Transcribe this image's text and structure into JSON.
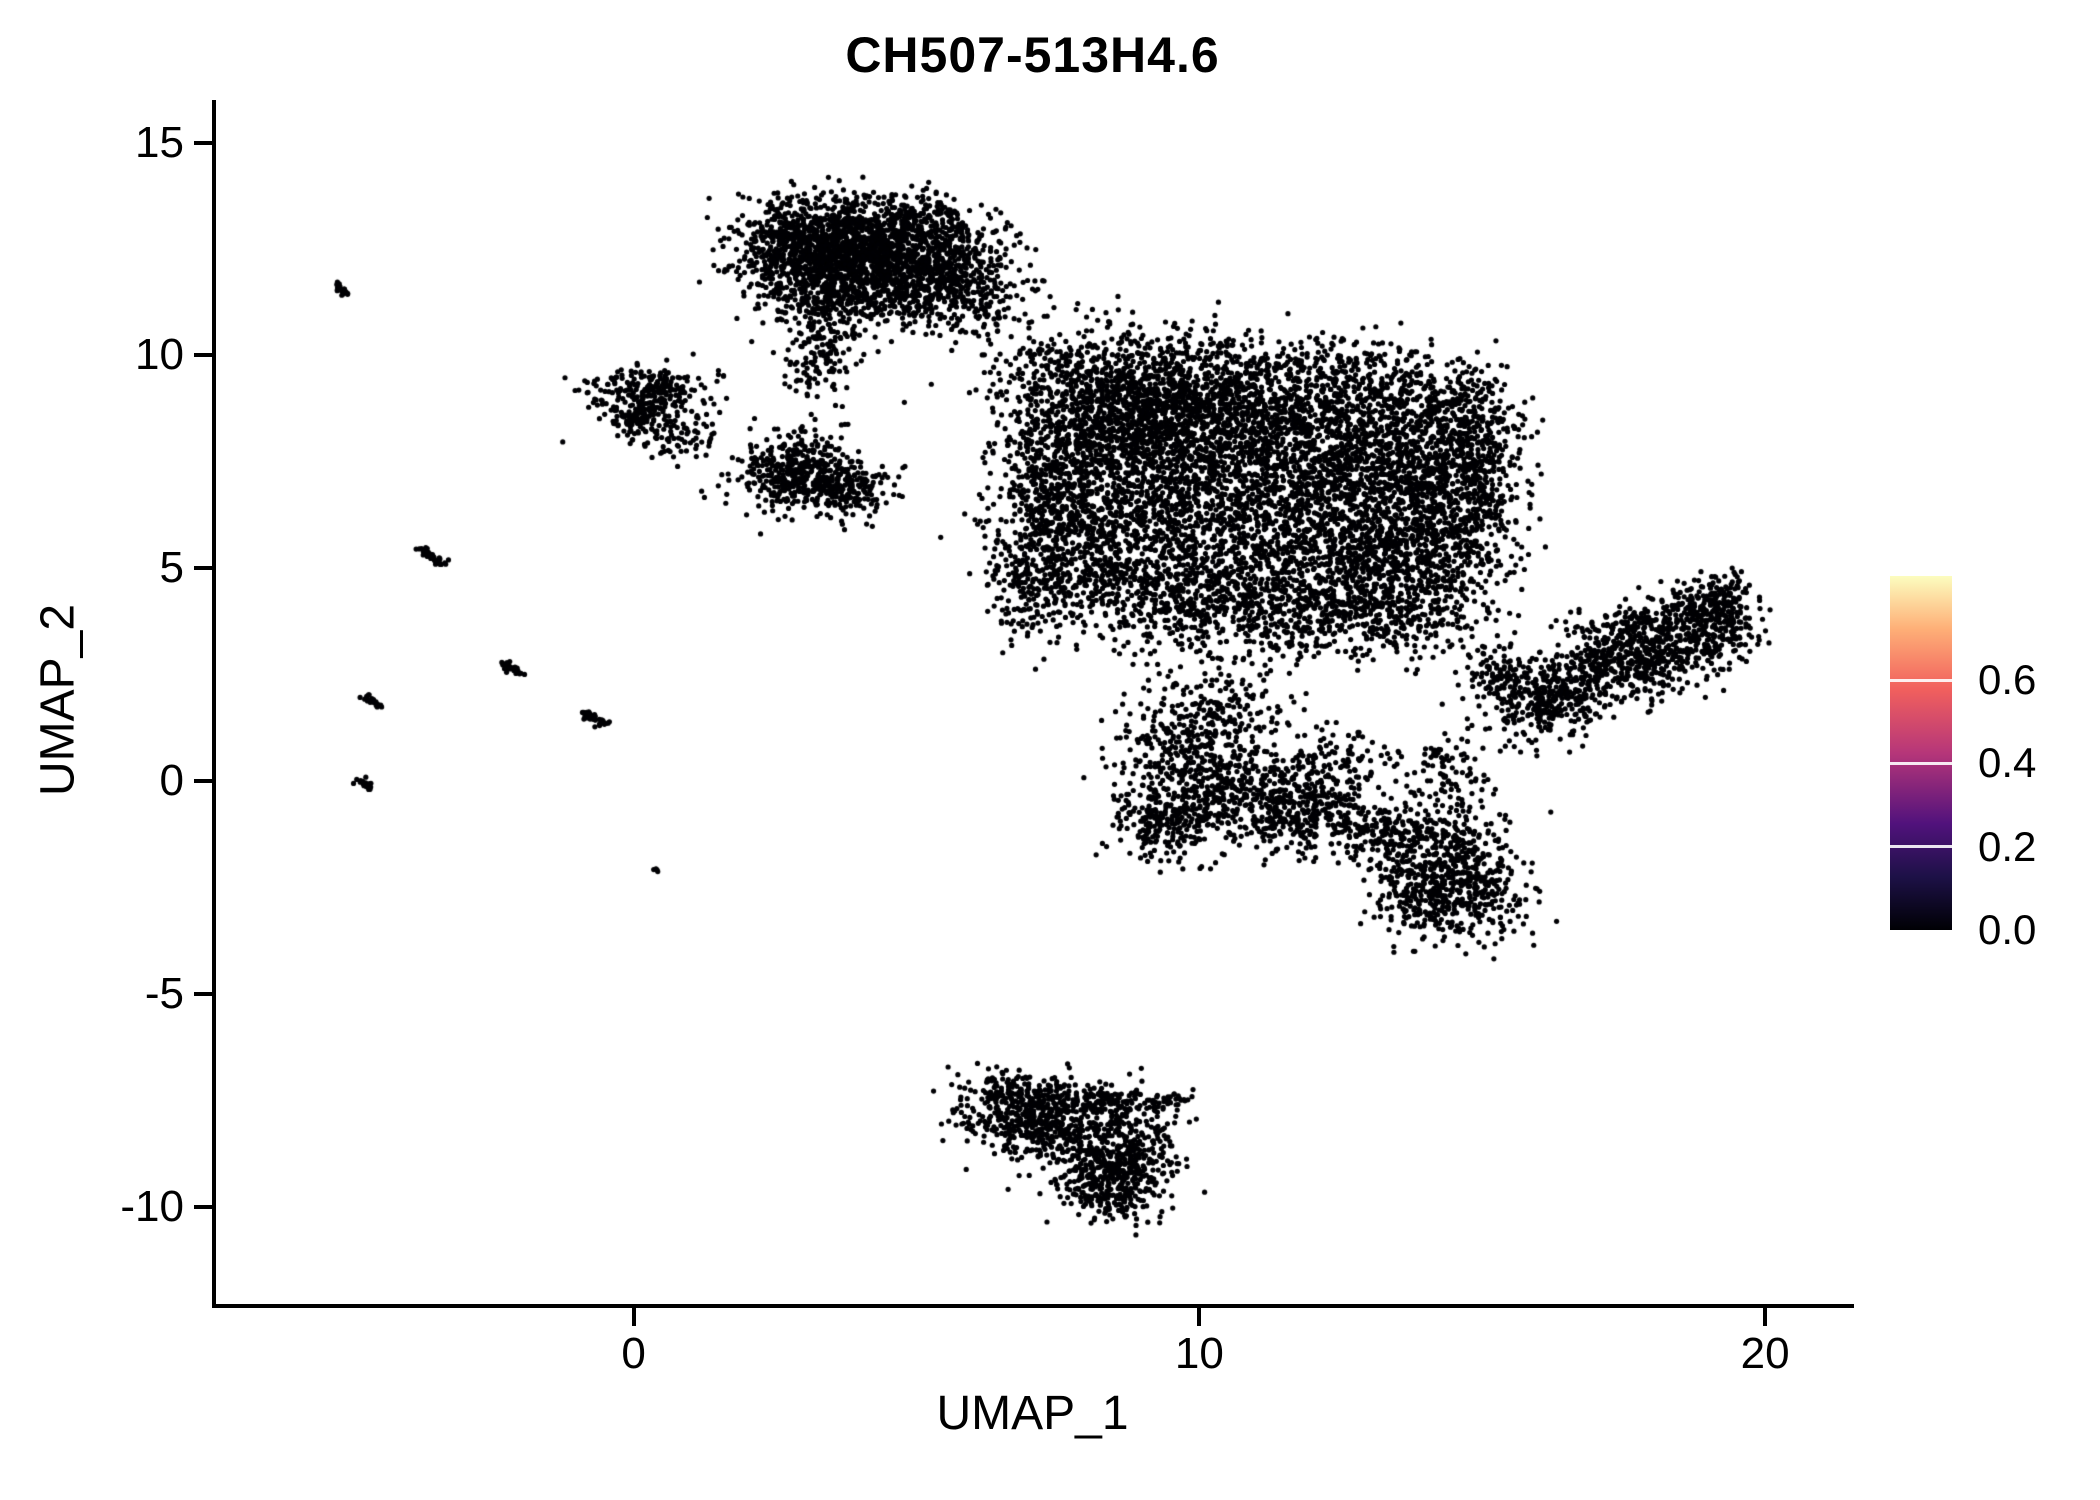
{
  "chart_data": {
    "type": "scatter",
    "title": "CH507-513H4.6",
    "xlabel": "UMAP_1",
    "ylabel": "UMAP_2",
    "x_ticks": [
      {
        "value": 0,
        "label": "0"
      },
      {
        "value": 10,
        "label": "10"
      },
      {
        "value": 20,
        "label": "20"
      }
    ],
    "y_ticks": [
      {
        "value": 15,
        "label": "15"
      },
      {
        "value": 10,
        "label": "10"
      },
      {
        "value": 5,
        "label": "5"
      },
      {
        "value": 0,
        "label": "0"
      },
      {
        "value": -5,
        "label": "-5"
      },
      {
        "value": -10,
        "label": "-10"
      }
    ],
    "x_range": [
      -7.4,
      21.5
    ],
    "y_range": [
      -12.3,
      16.0
    ],
    "grid": false,
    "legend_position": "right",
    "point_color": "#000004",
    "point_radius": 2.6,
    "seed": 42,
    "cluster_format": [
      "cx",
      "cy",
      "sx",
      "sy",
      "n"
    ],
    "clusters": [
      [
        3.2,
        12.6,
        0.75,
        0.55,
        900
      ],
      [
        4.6,
        12.4,
        0.85,
        0.6,
        900
      ],
      [
        3.9,
        11.5,
        0.9,
        0.45,
        500
      ],
      [
        5.6,
        11.9,
        0.5,
        0.5,
        220
      ],
      [
        5.0,
        13.2,
        0.5,
        0.3,
        120
      ],
      [
        3.4,
        10.5,
        0.35,
        0.5,
        120
      ],
      [
        3.1,
        9.7,
        0.3,
        0.4,
        50
      ],
      [
        6.2,
        11.2,
        0.5,
        0.7,
        90
      ],
      [
        6.7,
        10.2,
        0.6,
        0.6,
        40
      ],
      [
        0.25,
        9.1,
        0.5,
        0.35,
        260
      ],
      [
        0.15,
        8.4,
        0.3,
        0.25,
        90
      ],
      [
        0.9,
        8.0,
        0.25,
        0.3,
        60
      ],
      [
        2.9,
        7.3,
        0.55,
        0.45,
        450
      ],
      [
        3.8,
        6.8,
        0.4,
        0.3,
        150
      ],
      [
        8.3,
        8.8,
        0.9,
        0.8,
        800
      ],
      [
        10.2,
        8.8,
        1.1,
        0.8,
        900
      ],
      [
        12.2,
        8.2,
        1.1,
        0.9,
        900
      ],
      [
        13.8,
        7.2,
        0.8,
        0.9,
        600
      ],
      [
        9.0,
        7.0,
        1.1,
        0.9,
        900
      ],
      [
        11.2,
        6.3,
        1.2,
        1.0,
        900
      ],
      [
        13.0,
        5.5,
        0.9,
        0.8,
        600
      ],
      [
        8.0,
        5.3,
        0.7,
        0.8,
        450
      ],
      [
        9.8,
        4.4,
        0.9,
        0.7,
        500
      ],
      [
        11.8,
        4.0,
        0.8,
        0.6,
        400
      ],
      [
        13.6,
        4.1,
        0.7,
        0.6,
        300
      ],
      [
        14.6,
        5.8,
        0.5,
        1.0,
        300
      ],
      [
        14.9,
        7.8,
        0.45,
        0.8,
        250
      ],
      [
        14.2,
        9.0,
        0.6,
        0.5,
        200
      ],
      [
        7.3,
        6.8,
        0.5,
        0.9,
        300
      ],
      [
        7.0,
        4.7,
        0.4,
        0.6,
        150
      ],
      [
        9.0,
        10.0,
        1.2,
        0.4,
        150
      ],
      [
        12.6,
        9.6,
        0.8,
        0.4,
        120
      ],
      [
        19.3,
        3.9,
        0.3,
        0.5,
        150
      ],
      [
        9.8,
        0.6,
        0.6,
        0.8,
        350
      ],
      [
        10.8,
        -0.2,
        0.8,
        0.6,
        350
      ],
      [
        9.4,
        -1.0,
        0.5,
        0.4,
        200
      ],
      [
        11.9,
        -0.9,
        0.7,
        0.4,
        250
      ],
      [
        12.4,
        0.2,
        0.5,
        0.5,
        150
      ],
      [
        10.6,
        1.8,
        0.7,
        0.5,
        120
      ],
      [
        14.2,
        -1.6,
        0.6,
        0.5,
        300
      ],
      [
        14.8,
        -2.6,
        0.5,
        0.6,
        300
      ],
      [
        13.8,
        -2.8,
        0.4,
        0.4,
        150
      ],
      [
        13.2,
        -1.2,
        0.4,
        0.3,
        80
      ],
      [
        14.4,
        0.2,
        0.4,
        0.6,
        100
      ],
      [
        6.8,
        -7.7,
        0.55,
        0.4,
        300
      ],
      [
        7.8,
        -8.2,
        0.7,
        0.5,
        400
      ],
      [
        8.6,
        -8.9,
        0.5,
        0.5,
        300
      ],
      [
        8.4,
        -9.6,
        0.45,
        0.35,
        200
      ]
    ],
    "segment_format": [
      "x1",
      "y1",
      "x2",
      "y2",
      "jitter",
      "n"
    ],
    "segments": [
      [
        15.6,
        1.6,
        19.2,
        3.6,
        0.45,
        900
      ],
      [
        16.5,
        3.2,
        19.4,
        4.4,
        0.3,
        250
      ],
      [
        15.0,
        2.8,
        15.8,
        2.0,
        0.3,
        120
      ],
      [
        6.2,
        -7.2,
        9.4,
        -7.6,
        0.18,
        160
      ],
      [
        9.2,
        -7.5,
        9.8,
        -7.4,
        0.08,
        25
      ],
      [
        -5.25,
        11.65,
        -5.05,
        11.45,
        0.04,
        22
      ],
      [
        -3.75,
        5.45,
        -3.35,
        5.05,
        0.05,
        40
      ],
      [
        -2.3,
        2.8,
        -2.0,
        2.5,
        0.04,
        28
      ],
      [
        -4.75,
        2.0,
        -4.45,
        1.75,
        0.04,
        30
      ],
      [
        -4.85,
        0.0,
        -4.65,
        -0.18,
        0.04,
        20
      ],
      [
        -0.9,
        1.65,
        -0.5,
        1.35,
        0.05,
        34
      ],
      [
        0.32,
        -2.05,
        0.4,
        -2.1,
        0.03,
        5
      ],
      [
        1.5,
        9.6,
        1.55,
        9.55,
        0.03,
        4
      ]
    ],
    "colorbar": {
      "range": [
        0,
        0.85
      ],
      "tick_values": [
        0.6,
        0.4,
        0.2,
        0.0
      ],
      "tick_labels": [
        "0.6",
        "0.4",
        "0.2",
        "0.0"
      ],
      "tick_line_values": [
        0.6,
        0.4,
        0.2
      ],
      "gradient_bottom_to_top": [
        {
          "pos": 0.0,
          "color": "#000004"
        },
        {
          "pos": 0.15,
          "color": "#1D1147"
        },
        {
          "pos": 0.3,
          "color": "#51127C"
        },
        {
          "pos": 0.5,
          "color": "#B63679"
        },
        {
          "pos": 0.68,
          "color": "#F1605D"
        },
        {
          "pos": 0.85,
          "color": "#FEAF77"
        },
        {
          "pos": 1.0,
          "color": "#FCFDBF"
        }
      ]
    }
  }
}
